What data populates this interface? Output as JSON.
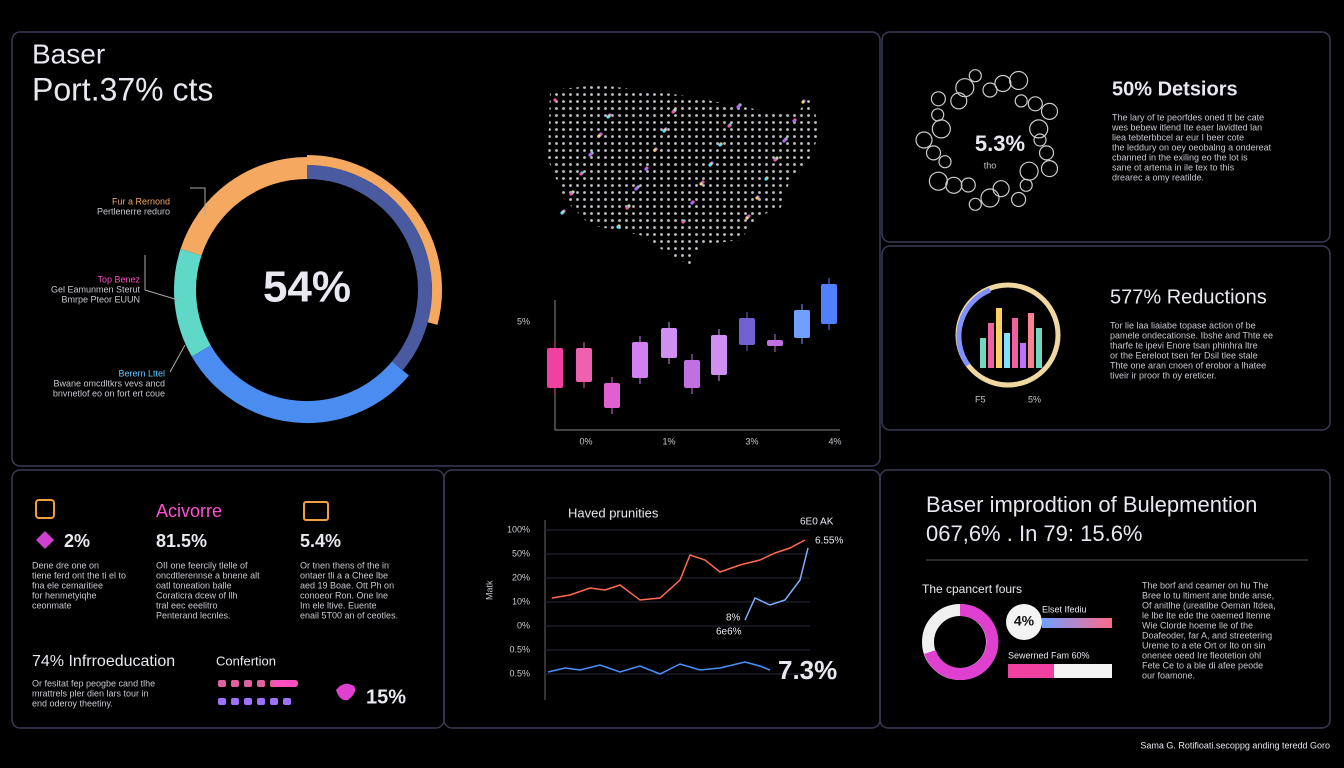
{
  "header": {
    "title": "Baser",
    "subtitle": "Port.37% cts"
  },
  "donut": {
    "center": "54%",
    "callouts": [
      [
        "Fur a Rernond",
        "Pertlenerre reduro"
      ],
      [
        "Top Benez",
        "Gel Eamunmen Sterut",
        "Bmrpe Pteor EUUN"
      ],
      [
        "Berern Lttel",
        "Bwane omcdltkrs vevs ancd",
        "bnvnetlof eo on fort ert coue"
      ]
    ]
  },
  "candles": {
    "y_label": "5%",
    "x_labels": [
      "0%",
      "1%",
      "3%",
      "4%"
    ]
  },
  "decisions": {
    "heading": "50% Detsiors",
    "badge": "5.3%",
    "badge_note": "tho",
    "lines": [
      "The lary of te peorfdes oned tt be cate",
      "wes bebew itlend Ite eaer lavidted lan",
      "liea tebterbbcel ar eur I beer cote",
      "the leddury on oey oeobalng a ondereat",
      "cbanned in the exiling eo the lot is",
      "sane ot artema in ile tex to this",
      "drearec a omy reatilde."
    ]
  },
  "reductions": {
    "heading": "577% Reductions",
    "lines": [
      "Tor lie laa liaiabe topase action of be",
      "pamele ondecationse. Ibshe and Thte ee",
      "tharfe te ipevi Enore tsan phinhra ltre",
      "or the Eereloot tsen fer Dsil tlee stale",
      "Thte one aran cnoen of erobor a lhatee",
      "tiveir ir proor th oy ereticer."
    ],
    "labels": [
      "F5",
      "5%"
    ]
  },
  "stats": {
    "items": [
      {
        "value": "2%",
        "lines": [
          "Dene dre one on",
          "tiene ferd ont the ti el to",
          "fna ele cemaritiee",
          "for henmetyiqhe",
          "ceonmate"
        ]
      },
      {
        "title": "Acivorre",
        "value": "81.5%",
        "lines": [
          "OII one feercily tlelle of",
          "oncdtlerennse a bnene alt",
          "oatl toneation balle",
          "Coraticra dcew of llh",
          "tral eec eeelitro",
          "Penterand lecnles."
        ]
      },
      {
        "value": "5.4%",
        "lines": [
          "Or tnen thens of the in",
          "ontaer tli a a Chee lbe",
          "aed 19 Boae. Ott Ph on",
          "conoeor Ron. One lne",
          "Im ele ltive. Euente",
          "enail 5T00 an of ceotles."
        ]
      }
    ],
    "intro_heading": "74% Infrroeducation",
    "intro_lines": [
      "Or fesitat fep peogbe cand tlhe",
      "mrattrels pler dien lars tour in",
      "end oderoy theetiny."
    ],
    "confertion": "Confertion",
    "social": "15%"
  },
  "trend": {
    "title": "Haved prunities",
    "y_label": "Matk",
    "y_labels": [
      "100%",
      "50%",
      "20%",
      "10%",
      "0%",
      "0.5%",
      "0.5%"
    ],
    "annotations": [
      "6E0 AK",
      "6.55%",
      "8%",
      "6e6%"
    ],
    "value": "7.3%"
  },
  "improvement": {
    "title": "Baser improdtion of Bulepmention",
    "subtitle": "067,6% . In 79: 15.6%",
    "section": "The cpancert fours",
    "badge": "4%",
    "bars": [
      "Elset Ifediu",
      "Sewerned Fam 60%"
    ],
    "lines": [
      "The borf and ceamer on hu The",
      "Bree lo tu ltiment ane bnde anse,",
      "Of anitlhe (ureatibe Oeman Itdea,",
      "le lbe Ite ede the oaemed ltenne",
      "Wie Clorde hoeme lle of the",
      "Doafeoder, far A, and streetering",
      "Ureme to a ete Ort or lto on sin",
      "onenee oeed Ire fleotetion ohl",
      "Fete Ce to a ble di afee peode",
      "our foamone."
    ]
  },
  "footer": "Sama G. Rotifioati.secoppg anding teredd Goro"
}
